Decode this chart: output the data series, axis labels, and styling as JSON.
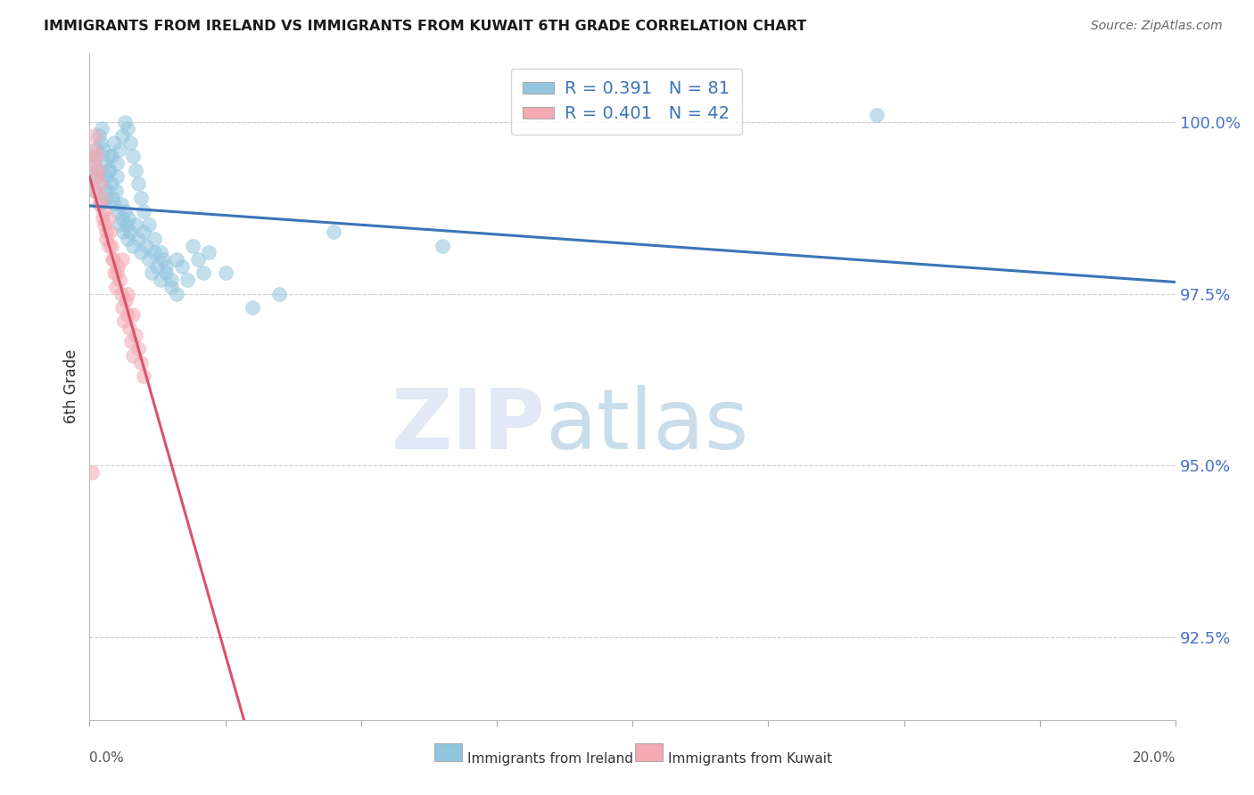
{
  "title": "IMMIGRANTS FROM IRELAND VS IMMIGRANTS FROM KUWAIT 6TH GRADE CORRELATION CHART",
  "source": "Source: ZipAtlas.com",
  "ylabel": "6th Grade",
  "y_ticks": [
    92.5,
    95.0,
    97.5,
    100.0
  ],
  "y_tick_labels": [
    "92.5%",
    "95.0%",
    "97.5%",
    "100.0%"
  ],
  "x_min": 0.0,
  "x_max": 20.0,
  "y_min": 91.3,
  "y_max": 101.0,
  "ireland_color": "#92c5de",
  "kuwait_color": "#f4a9b3",
  "ireland_edge_color": "#5a9fc0",
  "kuwait_edge_color": "#e07080",
  "ireland_line_color": "#3b74b8",
  "kuwait_line_color": "#d9536a",
  "ireland_R": 0.391,
  "ireland_N": 81,
  "kuwait_R": 0.401,
  "kuwait_N": 42,
  "watermark_zip": "ZIP",
  "watermark_atlas": "atlas",
  "legend_ireland": "Immigrants from Ireland",
  "legend_kuwait": "Immigrants from Kuwait",
  "ireland_x": [
    0.05,
    0.08,
    0.1,
    0.12,
    0.15,
    0.18,
    0.2,
    0.22,
    0.25,
    0.28,
    0.3,
    0.32,
    0.35,
    0.38,
    0.4,
    0.42,
    0.45,
    0.48,
    0.5,
    0.52,
    0.55,
    0.58,
    0.6,
    0.62,
    0.65,
    0.68,
    0.7,
    0.72,
    0.75,
    0.8,
    0.85,
    0.9,
    0.95,
    1.0,
    1.05,
    1.1,
    1.15,
    1.2,
    1.25,
    1.3,
    1.35,
    1.4,
    1.5,
    1.6,
    1.7,
    1.8,
    1.9,
    2.0,
    2.1,
    2.2,
    0.1,
    0.15,
    0.2,
    0.25,
    0.3,
    0.35,
    0.4,
    0.45,
    0.5,
    0.55,
    0.6,
    0.65,
    0.7,
    0.75,
    0.8,
    0.85,
    0.9,
    0.95,
    1.0,
    1.1,
    1.2,
    1.3,
    1.4,
    1.5,
    1.6,
    2.5,
    3.0,
    3.5,
    4.5,
    14.5,
    6.5
  ],
  "ireland_y": [
    99.2,
    99.5,
    99.4,
    99.6,
    99.3,
    99.8,
    99.7,
    99.9,
    99.6,
    99.4,
    99.2,
    99.0,
    99.5,
    99.3,
    99.1,
    98.9,
    98.8,
    99.0,
    99.2,
    98.7,
    98.5,
    98.8,
    98.6,
    98.4,
    98.7,
    98.5,
    98.3,
    98.6,
    98.4,
    98.2,
    98.5,
    98.3,
    98.1,
    98.4,
    98.2,
    98.0,
    97.8,
    98.1,
    97.9,
    97.7,
    98.0,
    97.8,
    97.6,
    98.0,
    97.9,
    97.7,
    98.2,
    98.0,
    97.8,
    98.1,
    99.0,
    99.2,
    98.8,
    99.1,
    98.9,
    99.3,
    99.5,
    99.7,
    99.4,
    99.6,
    99.8,
    100.0,
    99.9,
    99.7,
    99.5,
    99.3,
    99.1,
    98.9,
    98.7,
    98.5,
    98.3,
    98.1,
    97.9,
    97.7,
    97.5,
    97.8,
    97.3,
    97.5,
    98.4,
    100.1,
    98.2
  ],
  "kuwait_x": [
    0.04,
    0.07,
    0.1,
    0.13,
    0.16,
    0.19,
    0.22,
    0.25,
    0.28,
    0.31,
    0.34,
    0.37,
    0.4,
    0.43,
    0.46,
    0.49,
    0.52,
    0.55,
    0.58,
    0.61,
    0.64,
    0.67,
    0.7,
    0.73,
    0.76,
    0.8,
    0.85,
    0.9,
    0.95,
    1.0,
    0.08,
    0.12,
    0.18,
    0.24,
    0.3,
    0.36,
    0.42,
    0.5,
    0.6,
    0.7,
    0.8,
    0.04
  ],
  "kuwait_y": [
    99.4,
    99.6,
    99.8,
    99.5,
    99.3,
    99.1,
    98.9,
    98.7,
    98.5,
    98.3,
    98.6,
    98.4,
    98.2,
    98.0,
    97.8,
    97.6,
    97.9,
    97.7,
    97.5,
    97.3,
    97.1,
    97.4,
    97.2,
    97.0,
    96.8,
    96.6,
    96.9,
    96.7,
    96.5,
    96.3,
    99.0,
    99.2,
    98.8,
    98.6,
    98.4,
    98.2,
    98.0,
    97.8,
    98.0,
    97.5,
    97.2,
    94.9
  ]
}
